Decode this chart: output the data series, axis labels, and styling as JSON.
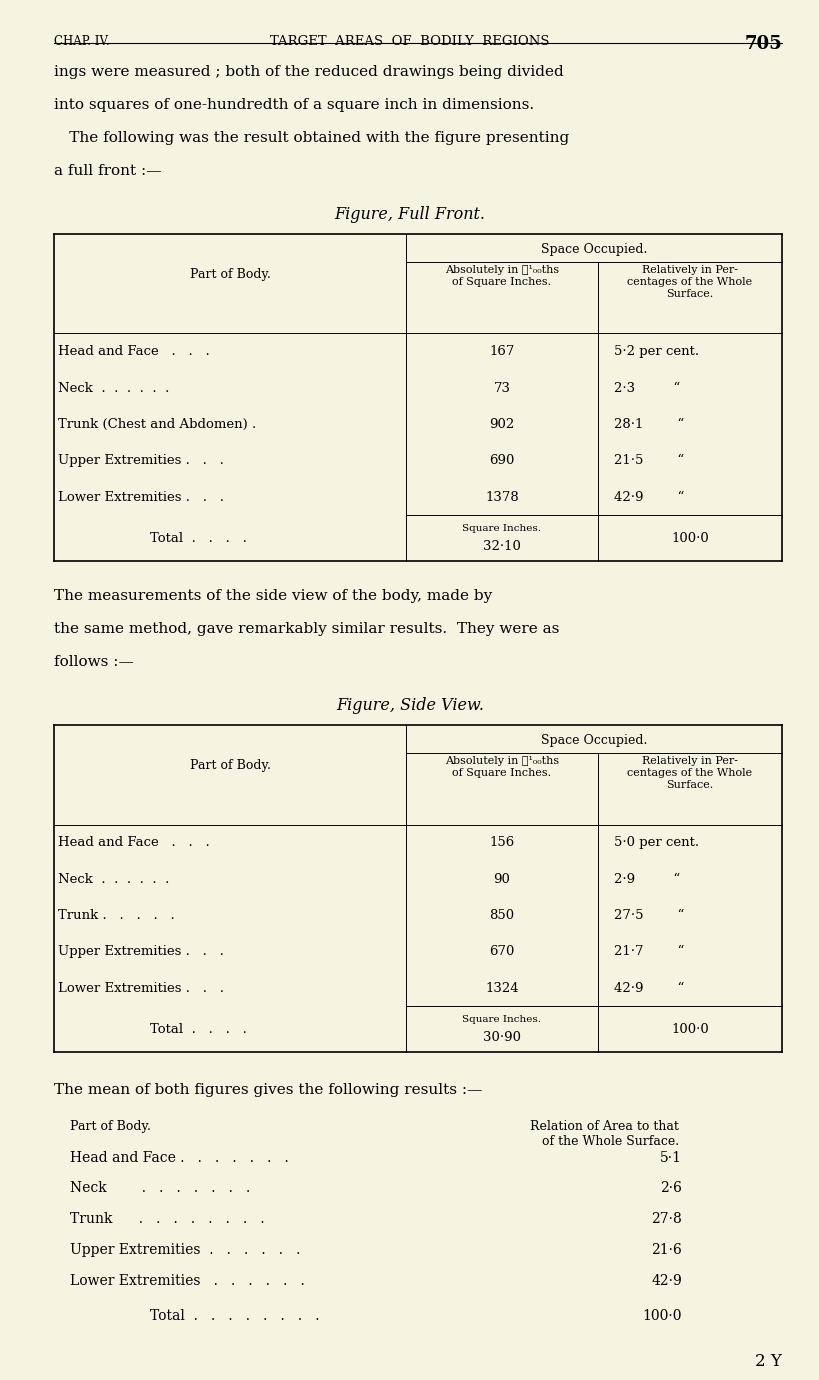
{
  "bg_color": "#f5f4e0",
  "page_width": 8.0,
  "page_height": 13.46,
  "dpi": 100,
  "header_chap": "CHAP. IV.",
  "header_title": "TARGET  AREAS  OF  BODILY  REGIONS",
  "header_page": "705",
  "intro_lines": [
    "ings were measured ; both of the reduced drawings being divided",
    "into squares of one-hundredth of a square inch in dimensions.",
    " The following was the result obtained with the figure presenting",
    "a full front :—"
  ],
  "table1_title": "Figure, Full Front.",
  "table2_title": "Figure, Side View.",
  "interlude_lines": [
    "The measurements of the side view of the body, made by",
    "the same method, gave remarkably similar results.  They were as",
    "follows :—"
  ],
  "mean_intro": "The mean of both figures gives the following results :—",
  "mean_col1_header": "Part of Body.",
  "mean_col2_header": "Relation of Area to that\nof the Whole Surface.",
  "mean_rows": [
    [
      "Head and Face .",
      "5·1"
    ],
    [
      "Neck",
      "2·6"
    ],
    [
      "Trunk",
      "27·8"
    ],
    [
      "Upper Extremities",
      "21·6"
    ],
    [
      "Lower Extremities",
      "42·9"
    ]
  ],
  "mean_total_value": "100·0",
  "footer": "2 Y",
  "table1_rows": [
    [
      "Head and Face   .   .   .",
      "167",
      "5·2 per cent."
    ],
    [
      "Neck  .  .  .  .  .  .",
      "73",
      "2·3         “"
    ],
    [
      "Trunk (Chest and Abdomen) .",
      "902",
      "28·1        “"
    ],
    [
      "Upper Extremities .   .   .",
      "690",
      "21·5        “"
    ],
    [
      "Lower Extremities .   .   .",
      "1378",
      "42·9        “"
    ]
  ],
  "table1_total_abs_unit": "Square Inches.",
  "table1_total_abs": "32·10",
  "table1_total_rel": "100·0",
  "table2_rows": [
    [
      "Head and Face   .   .   .",
      "156",
      "5·0 per cent."
    ],
    [
      "Neck  .  .  .  .  .  .",
      "90",
      "2·9         “"
    ],
    [
      "Trunk .   .   .   .   .",
      "850",
      "27·5        “"
    ],
    [
      "Upper Extremities .   .   .",
      "670",
      "21·7        “"
    ],
    [
      "Lower Extremities .   .   .",
      "1324",
      "42·9        “"
    ]
  ],
  "table2_total_abs_unit": "Square Inches.",
  "table2_total_abs": "30·90",
  "table2_total_rel": "100·0",
  "mean_dots": [
    "Head and Face .   .   .   .   .   .   .",
    "Neck        .   .   .   .   .   .   .",
    "Trunk      .   .   .   .   .   .   .   .",
    "Upper Extremities  .   .   .   .   .   .",
    "Lower Extremities   .   .   .   .   .   ."
  ]
}
